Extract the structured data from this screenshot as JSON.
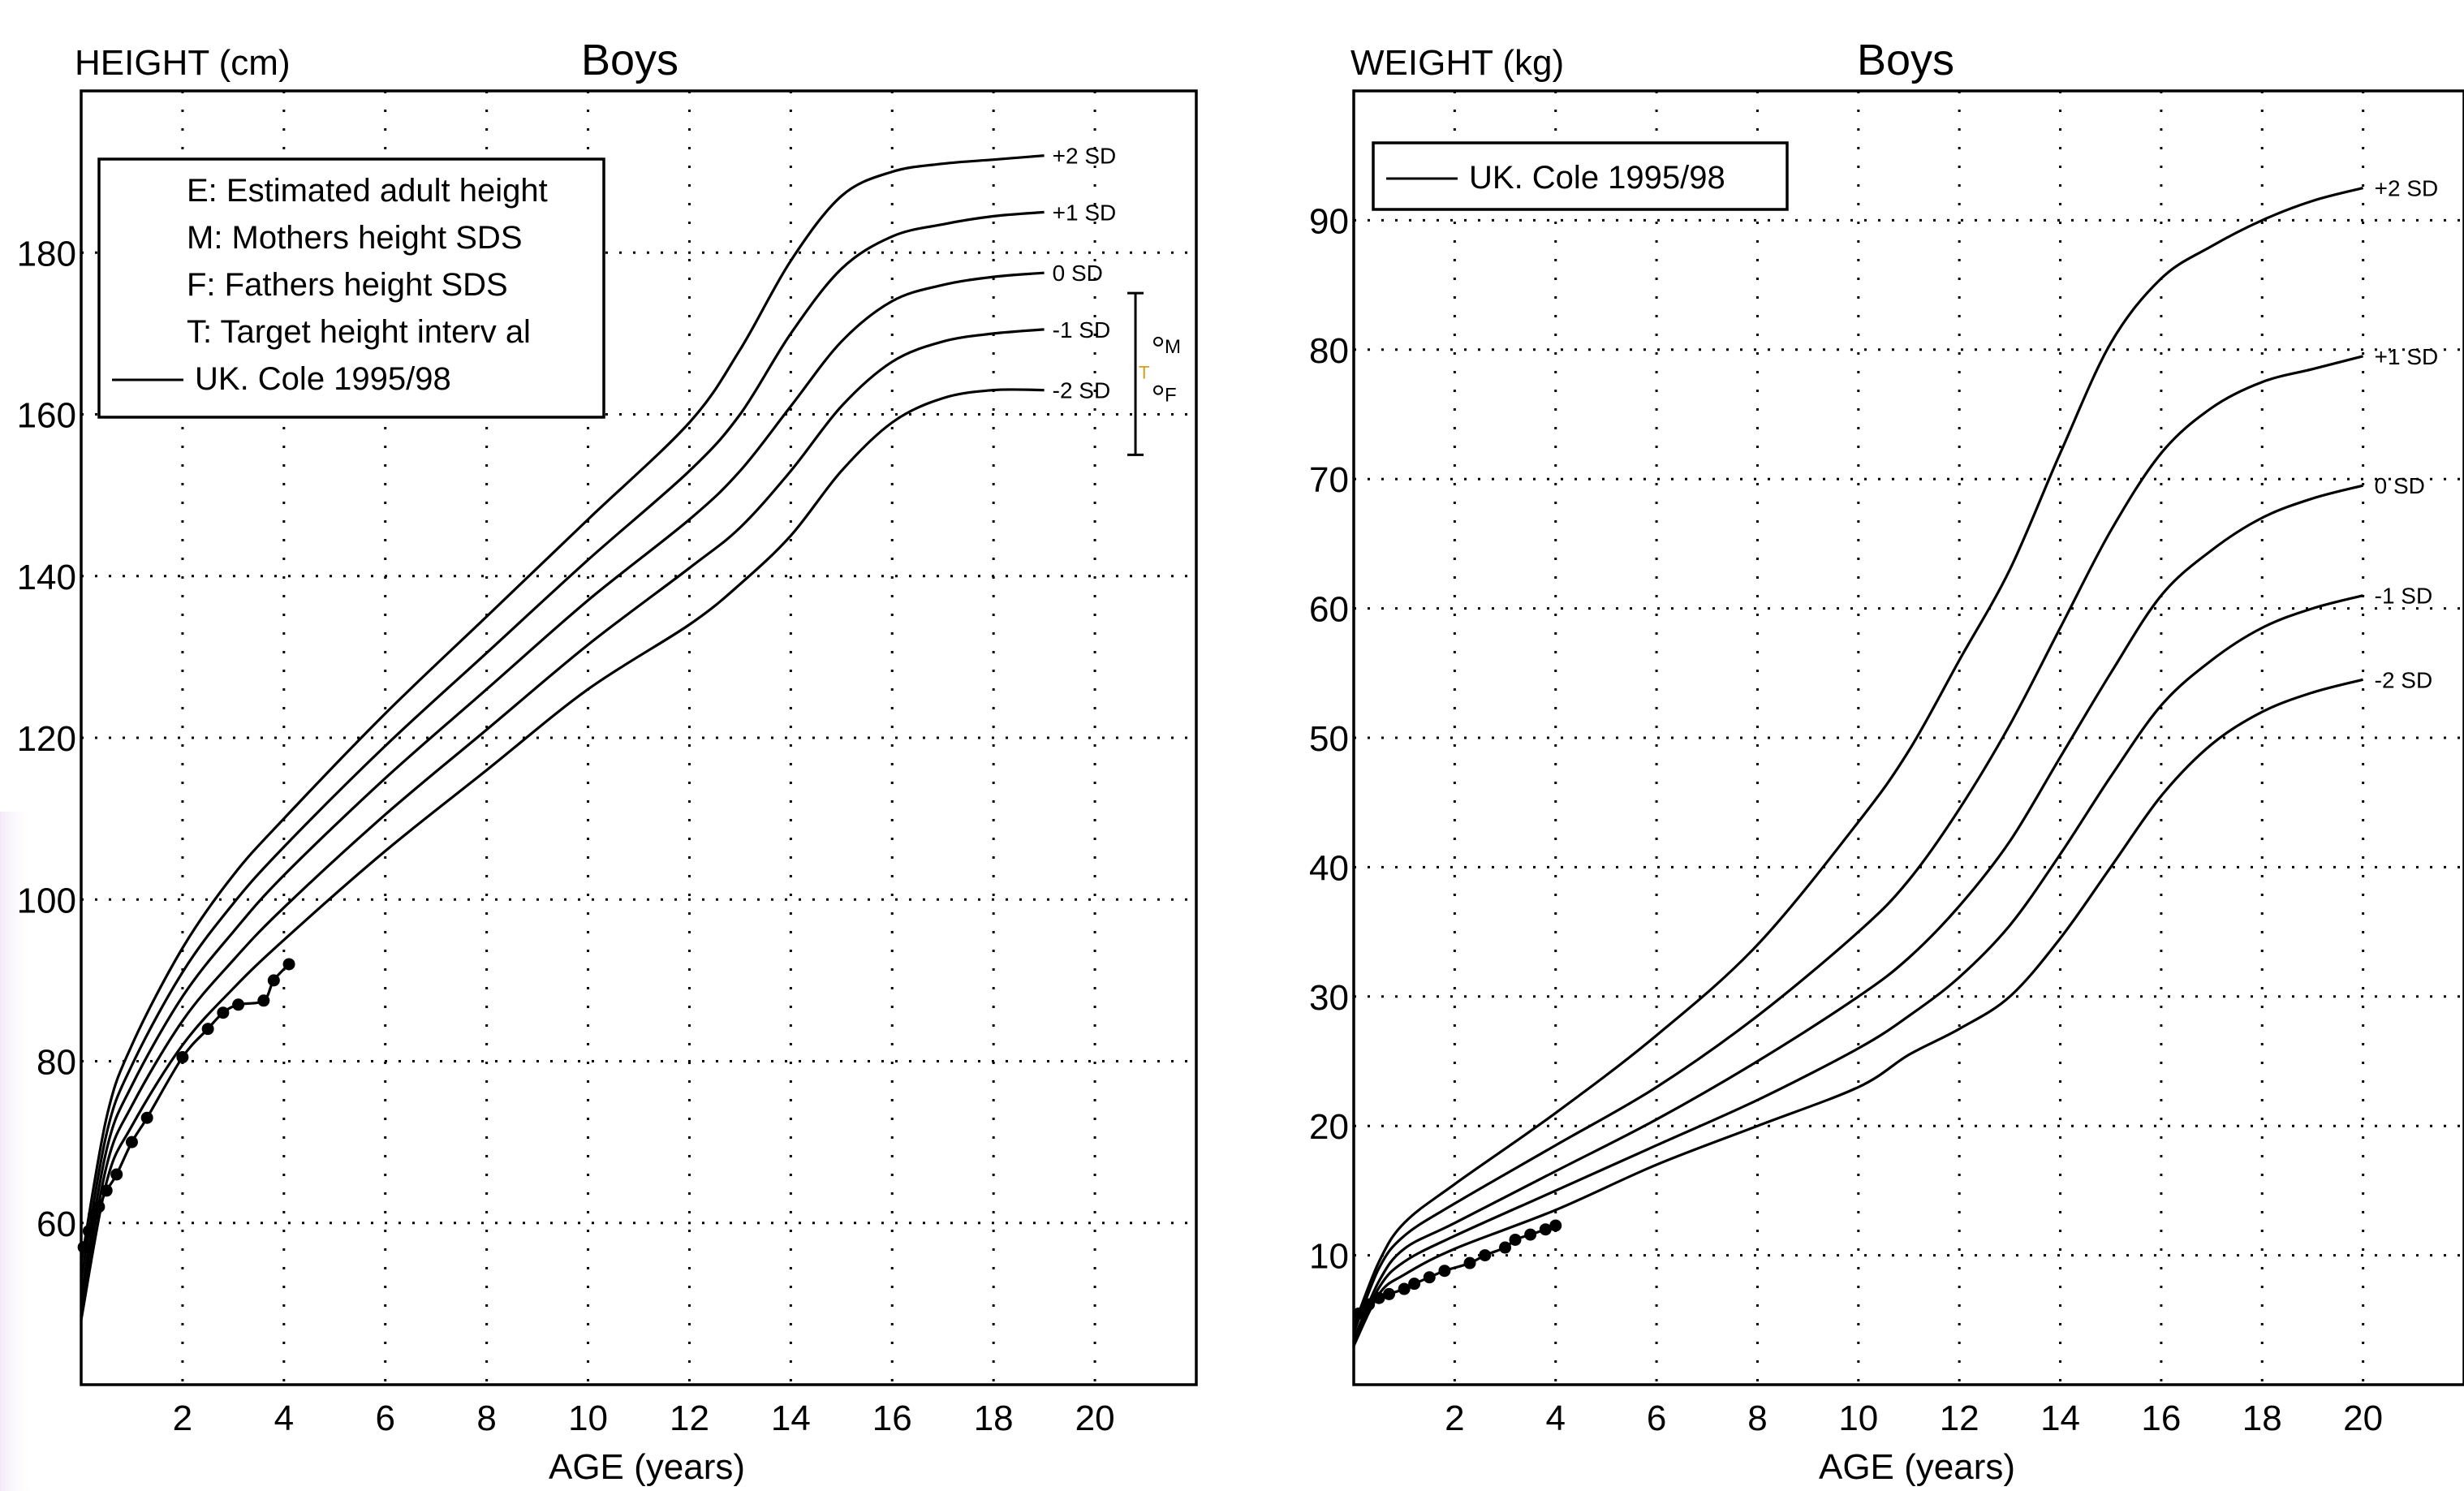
{
  "chart_data": [
    {
      "type": "line",
      "title": "Boys",
      "ylabel": "HEIGHT (cm)",
      "xlabel": "AGE (years)",
      "xlim": [
        0,
        22
      ],
      "ylim": [
        40,
        200
      ],
      "x_ticks": [
        2,
        4,
        6,
        8,
        10,
        12,
        14,
        16,
        18,
        20
      ],
      "y_ticks": [
        60,
        80,
        100,
        120,
        140,
        160,
        180
      ],
      "grid": true,
      "legend_position": "top-left",
      "legend": [
        "E: Estimated adult height",
        "M: Mothers height SDS",
        "F: Fathers height SDS",
        "T: Target height interv al",
        "UK. Cole 1995/98"
      ],
      "target_marks": [
        "M",
        "F",
        "T"
      ],
      "series": [
        {
          "name": "+2 SD",
          "x": [
            0,
            0.5,
            1,
            2,
            3,
            4,
            6,
            8,
            10,
            12,
            13,
            14,
            15,
            16,
            17,
            18,
            19
          ],
          "y": [
            55,
            73,
            82,
            94,
            103,
            110,
            123,
            135,
            147,
            159,
            168,
            179,
            187,
            190,
            191,
            191.5,
            192
          ]
        },
        {
          "name": "+1 SD",
          "x": [
            0,
            0.5,
            1,
            2,
            3,
            4,
            6,
            8,
            10,
            12,
            13,
            14,
            15,
            16,
            17,
            18,
            19
          ],
          "y": [
            53,
            71,
            79.5,
            91,
            99.5,
            106.5,
            119,
            130.5,
            142,
            153,
            160,
            170,
            178,
            182,
            183.5,
            184.5,
            185
          ]
        },
        {
          "name": "0 SD",
          "x": [
            0,
            0.5,
            1,
            2,
            3,
            4,
            6,
            8,
            10,
            12,
            13,
            14,
            15,
            16,
            17,
            18,
            19
          ],
          "y": [
            51,
            69,
            77,
            88,
            96,
            103,
            115,
            126,
            137,
            147,
            153,
            161,
            169,
            174,
            176,
            177,
            177.5
          ]
        },
        {
          "name": "-1 SD",
          "x": [
            0,
            0.5,
            1,
            2,
            3,
            4,
            6,
            8,
            10,
            12,
            13,
            14,
            15,
            16,
            17,
            18,
            19
          ],
          "y": [
            49.5,
            67,
            74.5,
            85,
            92.5,
            99,
            110.5,
            121,
            131.5,
            141,
            146,
            153,
            161,
            166.5,
            169,
            170,
            170.5
          ]
        },
        {
          "name": "-2 SD",
          "x": [
            0,
            0.5,
            1,
            2,
            3,
            4,
            6,
            8,
            10,
            12,
            13,
            14,
            15,
            16,
            17,
            18,
            19
          ],
          "y": [
            48,
            65,
            72,
            82,
            89,
            95,
            106,
            116,
            126,
            134,
            139,
            145,
            153,
            159,
            162,
            163,
            163
          ]
        }
      ],
      "patient_points": {
        "x": [
          0.05,
          0.15,
          0.25,
          0.35,
          0.5,
          0.7,
          1.0,
          1.3,
          2.0,
          2.5,
          2.8,
          3.1,
          3.6,
          3.8,
          4.1
        ],
        "y": [
          57,
          59,
          61,
          62,
          64,
          66,
          70,
          73,
          80.5,
          84,
          86,
          87,
          87.5,
          90,
          92
        ]
      },
      "target_bar": {
        "x": 20.8,
        "y_top": 175,
        "y_bottom": 155,
        "mother_y": 169,
        "father_y": 163,
        "target_y": 165
      }
    },
    {
      "type": "line",
      "title": "Boys",
      "ylabel": "WEIGHT (kg)",
      "xlabel": "AGE (years)",
      "xlim": [
        0,
        22
      ],
      "ylim": [
        0,
        100
      ],
      "x_ticks": [
        2,
        4,
        6,
        8,
        10,
        12,
        14,
        16,
        18,
        20
      ],
      "y_ticks": [
        10,
        20,
        30,
        40,
        50,
        60,
        70,
        80,
        90
      ],
      "grid": true,
      "legend_position": "top-left",
      "legend": [
        "UK. Cole 1995/98"
      ],
      "series": [
        {
          "name": "+2 SD",
          "x": [
            0,
            0.5,
            1,
            2,
            4,
            6,
            8,
            10,
            11,
            12,
            13,
            14,
            15,
            16,
            17,
            18,
            19,
            20
          ],
          "y": [
            4.5,
            9.5,
            12.5,
            15.5,
            21,
            27,
            34,
            43.5,
            49,
            56,
            63,
            72,
            80.5,
            85.5,
            88,
            90,
            91.5,
            92.5
          ]
        },
        {
          "name": "+1 SD",
          "x": [
            0,
            0.5,
            1,
            2,
            4,
            6,
            8,
            10,
            11,
            12,
            13,
            14,
            15,
            16,
            17,
            18,
            19,
            20
          ],
          "y": [
            4,
            9,
            11.5,
            14,
            18.5,
            23,
            28.5,
            35,
            39,
            44.5,
            51,
            58.5,
            66,
            72,
            75.5,
            77.5,
            78.5,
            79.5
          ]
        },
        {
          "name": "0 SD",
          "x": [
            0,
            0.5,
            1,
            2,
            4,
            6,
            8,
            10,
            11,
            12,
            13,
            14,
            15,
            16,
            17,
            18,
            19,
            20
          ],
          "y": [
            3.5,
            8,
            10.5,
            12.5,
            16.5,
            20.5,
            25,
            30,
            33,
            37,
            42,
            48.5,
            55,
            61,
            64.5,
            67,
            68.5,
            69.5
          ]
        },
        {
          "name": "-1 SD",
          "x": [
            0,
            0.5,
            1,
            2,
            4,
            6,
            8,
            10,
            11,
            12,
            13,
            14,
            15,
            16,
            17,
            18,
            19,
            20
          ],
          "y": [
            3.2,
            7.5,
            9.5,
            11.5,
            15,
            18.5,
            22,
            26,
            28.5,
            31.5,
            35.5,
            41,
            47,
            52.5,
            56,
            58.5,
            60,
            61
          ]
        },
        {
          "name": "-2 SD",
          "x": [
            0,
            0.5,
            1,
            2,
            4,
            6,
            8,
            10,
            11,
            12,
            13,
            14,
            15,
            16,
            17,
            18,
            19,
            20
          ],
          "y": [
            3,
            7,
            8.5,
            10.5,
            13.5,
            17,
            20,
            23,
            25.5,
            27.5,
            30,
            34.5,
            40,
            45.5,
            49.5,
            52,
            53.5,
            54.5
          ]
        }
      ],
      "patient_points": {
        "x": [
          0.1,
          0.3,
          0.5,
          0.7,
          1.0,
          1.2,
          1.5,
          1.8,
          2.3,
          2.6,
          3.0,
          3.2,
          3.5,
          3.8,
          4.0
        ],
        "y": [
          5.5,
          6.2,
          6.7,
          7,
          7.4,
          7.8,
          8.3,
          8.8,
          9.4,
          10,
          10.6,
          11.2,
          11.6,
          12,
          12.3
        ]
      }
    }
  ]
}
